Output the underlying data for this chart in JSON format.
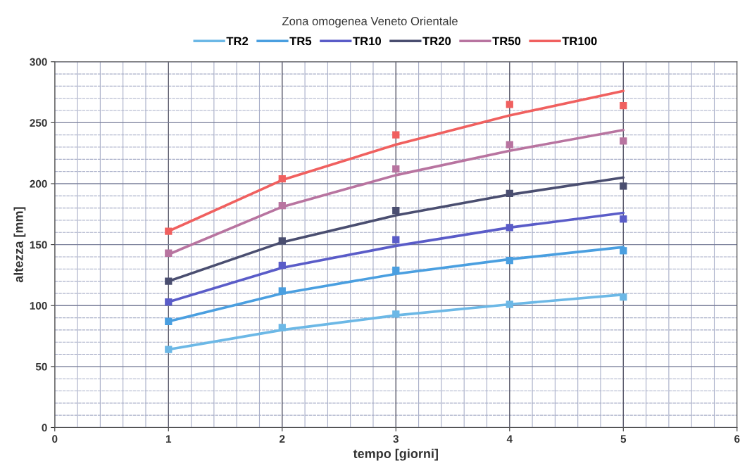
{
  "chart_data": {
    "type": "line",
    "title": "Zona omogenea Veneto Orientale",
    "xlabel": "tempo [giorni]",
    "ylabel": "altezza [mm]",
    "x": [
      1,
      2,
      3,
      4,
      5
    ],
    "series": [
      {
        "name": "TR2",
        "color": "#6cb8e6",
        "values": [
          64,
          80,
          92,
          101,
          109
        ]
      },
      {
        "name": "TR5",
        "color": "#4a9fe0",
        "values": [
          87,
          110,
          126,
          138,
          148
        ]
      },
      {
        "name": "TR10",
        "color": "#5a5cc8",
        "values": [
          103,
          131,
          149,
          164,
          176
        ]
      },
      {
        "name": "TR20",
        "color": "#4a4e70",
        "values": [
          120,
          152,
          174,
          191,
          205
        ]
      },
      {
        "name": "TR50",
        "color": "#b874a0",
        "values": [
          142,
          181,
          207,
          227,
          244
        ]
      },
      {
        "name": "TR100",
        "color": "#f0605f",
        "values": [
          161,
          203,
          232,
          256,
          276
        ]
      },
      {
        "type": "scatter",
        "marker": "square",
        "color": "#6cb8e6",
        "values": [
          64,
          82,
          93,
          101,
          107
        ]
      },
      {
        "type": "scatter",
        "marker": "square",
        "color": "#4a9fe0",
        "values": [
          87,
          112,
          129,
          137,
          145
        ]
      },
      {
        "type": "scatter",
        "marker": "square",
        "color": "#5a5cc8",
        "values": [
          103,
          133,
          154,
          164,
          171
        ]
      },
      {
        "type": "scatter",
        "marker": "square",
        "color": "#4a4e70",
        "values": [
          120,
          153,
          178,
          192,
          198
        ]
      },
      {
        "type": "scatter",
        "marker": "square",
        "color": "#b874a0",
        "values": [
          143,
          182,
          212,
          232,
          235
        ]
      },
      {
        "type": "scatter",
        "marker": "square",
        "color": "#f0605f",
        "values": [
          161,
          204,
          240,
          265,
          264
        ]
      }
    ],
    "xlim": [
      0,
      6
    ],
    "xticks": [
      0,
      1,
      2,
      3,
      4,
      5,
      6
    ],
    "ylim": [
      0,
      300
    ],
    "yticks": [
      0,
      50,
      100,
      150,
      200,
      250,
      300
    ],
    "grid": true,
    "legend": "top",
    "marker": "none",
    "line_style": "solid"
  }
}
